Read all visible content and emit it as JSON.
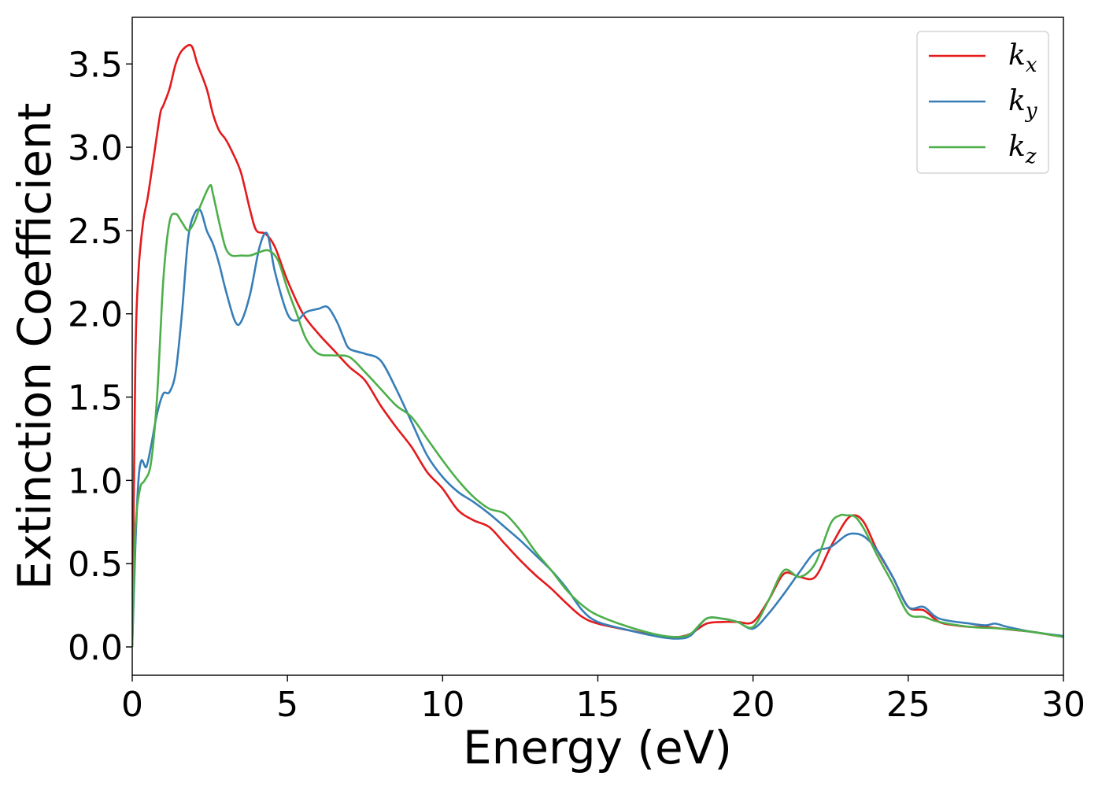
{
  "chart_data": {
    "type": "line",
    "xlabel": "Energy (eV)",
    "ylabel": "Extinction Coefficient",
    "xlim": [
      0,
      30
    ],
    "ylim": [
      -0.17,
      3.78
    ],
    "xticks": [
      0,
      5,
      10,
      15,
      20,
      25,
      30
    ],
    "xtick_labels": [
      "0",
      "5",
      "10",
      "15",
      "20",
      "25",
      "30"
    ],
    "yticks": [
      0.0,
      0.5,
      1.0,
      1.5,
      2.0,
      2.5,
      3.0,
      3.5
    ],
    "ytick_labels": [
      "0.0",
      "0.5",
      "1.0",
      "1.5",
      "2.0",
      "2.5",
      "3.0",
      "3.5"
    ],
    "grid": false,
    "legend_position": "top-right",
    "series": [
      {
        "name": "k_x",
        "name_base": "k",
        "name_sub": "x",
        "color": "#e41a1c",
        "x": [
          0,
          0.1,
          0.2,
          0.35,
          0.5,
          0.7,
          0.9,
          1.0,
          1.2,
          1.4,
          1.6,
          1.9,
          2.1,
          2.4,
          2.6,
          2.8,
          3.0,
          3.2,
          3.5,
          3.8,
          4.0,
          4.3,
          4.6,
          5.0,
          5.5,
          6.0,
          6.5,
          7.0,
          7.5,
          8.0,
          8.5,
          9.0,
          9.5,
          10.0,
          10.5,
          11.0,
          11.5,
          12.0,
          12.5,
          13.0,
          13.5,
          14.0,
          14.5,
          15.0,
          16.0,
          17.0,
          17.6,
          18.0,
          18.5,
          19.0,
          19.5,
          20.0,
          20.5,
          21.0,
          21.5,
          22.0,
          22.5,
          23.0,
          23.3,
          23.6,
          24.0,
          24.5,
          25.0,
          25.5,
          26.0,
          26.5,
          27.0,
          27.5,
          28.0,
          28.5,
          29.0,
          30.0
        ],
        "y": [
          0,
          1.7,
          2.25,
          2.55,
          2.7,
          2.95,
          3.2,
          3.25,
          3.35,
          3.5,
          3.58,
          3.61,
          3.5,
          3.35,
          3.2,
          3.1,
          3.05,
          2.98,
          2.85,
          2.62,
          2.5,
          2.48,
          2.4,
          2.2,
          2.0,
          1.88,
          1.78,
          1.68,
          1.6,
          1.45,
          1.32,
          1.2,
          1.05,
          0.95,
          0.82,
          0.76,
          0.72,
          0.62,
          0.52,
          0.43,
          0.35,
          0.26,
          0.18,
          0.14,
          0.1,
          0.065,
          0.06,
          0.08,
          0.14,
          0.15,
          0.15,
          0.15,
          0.28,
          0.44,
          0.42,
          0.42,
          0.6,
          0.76,
          0.79,
          0.74,
          0.58,
          0.42,
          0.24,
          0.22,
          0.15,
          0.13,
          0.12,
          0.12,
          0.11,
          0.1,
          0.09,
          0.06
        ]
      },
      {
        "name": "k_y",
        "name_base": "k",
        "name_sub": "y",
        "color": "#377eb8",
        "x": [
          0,
          0.1,
          0.2,
          0.3,
          0.45,
          0.6,
          0.8,
          1.0,
          1.2,
          1.4,
          1.6,
          1.8,
          2.0,
          2.2,
          2.4,
          2.6,
          2.8,
          3.0,
          3.3,
          3.5,
          3.8,
          4.1,
          4.35,
          4.6,
          5.0,
          5.3,
          5.6,
          6.0,
          6.3,
          6.6,
          6.8,
          7.0,
          7.5,
          8.0,
          8.5,
          9.0,
          9.5,
          10.0,
          10.5,
          11.0,
          11.5,
          12.0,
          12.5,
          13.0,
          13.5,
          14.0,
          14.5,
          15.0,
          16.0,
          17.0,
          17.6,
          18.0,
          18.5,
          19.0,
          19.5,
          20.0,
          20.5,
          21.0,
          21.5,
          22.0,
          22.5,
          23.0,
          23.3,
          23.6,
          24.0,
          24.5,
          25.0,
          25.5,
          26.0,
          27.0,
          27.5,
          27.8,
          28.2,
          29.0,
          30.0
        ],
        "y": [
          0,
          0.6,
          1.0,
          1.12,
          1.08,
          1.2,
          1.4,
          1.52,
          1.53,
          1.65,
          2.0,
          2.45,
          2.6,
          2.62,
          2.5,
          2.42,
          2.3,
          2.15,
          1.96,
          1.95,
          2.12,
          2.4,
          2.48,
          2.25,
          2.0,
          1.96,
          2.01,
          2.03,
          2.04,
          1.95,
          1.86,
          1.79,
          1.76,
          1.72,
          1.55,
          1.35,
          1.15,
          1.02,
          0.93,
          0.87,
          0.8,
          0.72,
          0.64,
          0.55,
          0.46,
          0.35,
          0.22,
          0.15,
          0.1,
          0.06,
          0.05,
          0.07,
          0.17,
          0.17,
          0.15,
          0.11,
          0.2,
          0.32,
          0.45,
          0.57,
          0.6,
          0.67,
          0.68,
          0.66,
          0.58,
          0.42,
          0.24,
          0.24,
          0.17,
          0.14,
          0.13,
          0.14,
          0.12,
          0.09,
          0.065
        ]
      },
      {
        "name": "k_z",
        "name_base": "k",
        "name_sub": "z",
        "color": "#4daf4a",
        "x": [
          0,
          0.1,
          0.25,
          0.4,
          0.6,
          0.8,
          1.0,
          1.2,
          1.4,
          1.6,
          1.8,
          2.0,
          2.2,
          2.5,
          2.6,
          2.8,
          3.0,
          3.2,
          3.5,
          3.8,
          4.1,
          4.4,
          4.7,
          5.0,
          5.3,
          5.6,
          6.0,
          6.5,
          7.0,
          7.5,
          8.0,
          8.5,
          9.0,
          9.5,
          10.0,
          10.5,
          11.0,
          11.5,
          12.0,
          12.5,
          13.0,
          13.5,
          14.0,
          14.5,
          15.0,
          16.0,
          17.0,
          17.6,
          18.0,
          18.5,
          19.0,
          19.5,
          20.0,
          20.5,
          21.0,
          21.5,
          22.0,
          22.5,
          22.8,
          23.0,
          23.3,
          23.6,
          24.0,
          24.5,
          25.0,
          25.5,
          26.0,
          27.0,
          28.0,
          29.0,
          30.0
        ],
        "y": [
          0,
          0.7,
          0.95,
          1.0,
          1.1,
          1.5,
          2.2,
          2.55,
          2.6,
          2.55,
          2.5,
          2.55,
          2.65,
          2.77,
          2.72,
          2.55,
          2.4,
          2.35,
          2.35,
          2.35,
          2.37,
          2.38,
          2.32,
          2.15,
          2.0,
          1.85,
          1.76,
          1.75,
          1.74,
          1.65,
          1.55,
          1.45,
          1.38,
          1.25,
          1.12,
          1.0,
          0.9,
          0.83,
          0.8,
          0.7,
          0.57,
          0.46,
          0.34,
          0.25,
          0.19,
          0.12,
          0.07,
          0.06,
          0.08,
          0.17,
          0.17,
          0.15,
          0.12,
          0.28,
          0.46,
          0.42,
          0.5,
          0.74,
          0.79,
          0.79,
          0.78,
          0.7,
          0.55,
          0.38,
          0.2,
          0.18,
          0.15,
          0.12,
          0.11,
          0.09,
          0.06
        ]
      }
    ]
  }
}
